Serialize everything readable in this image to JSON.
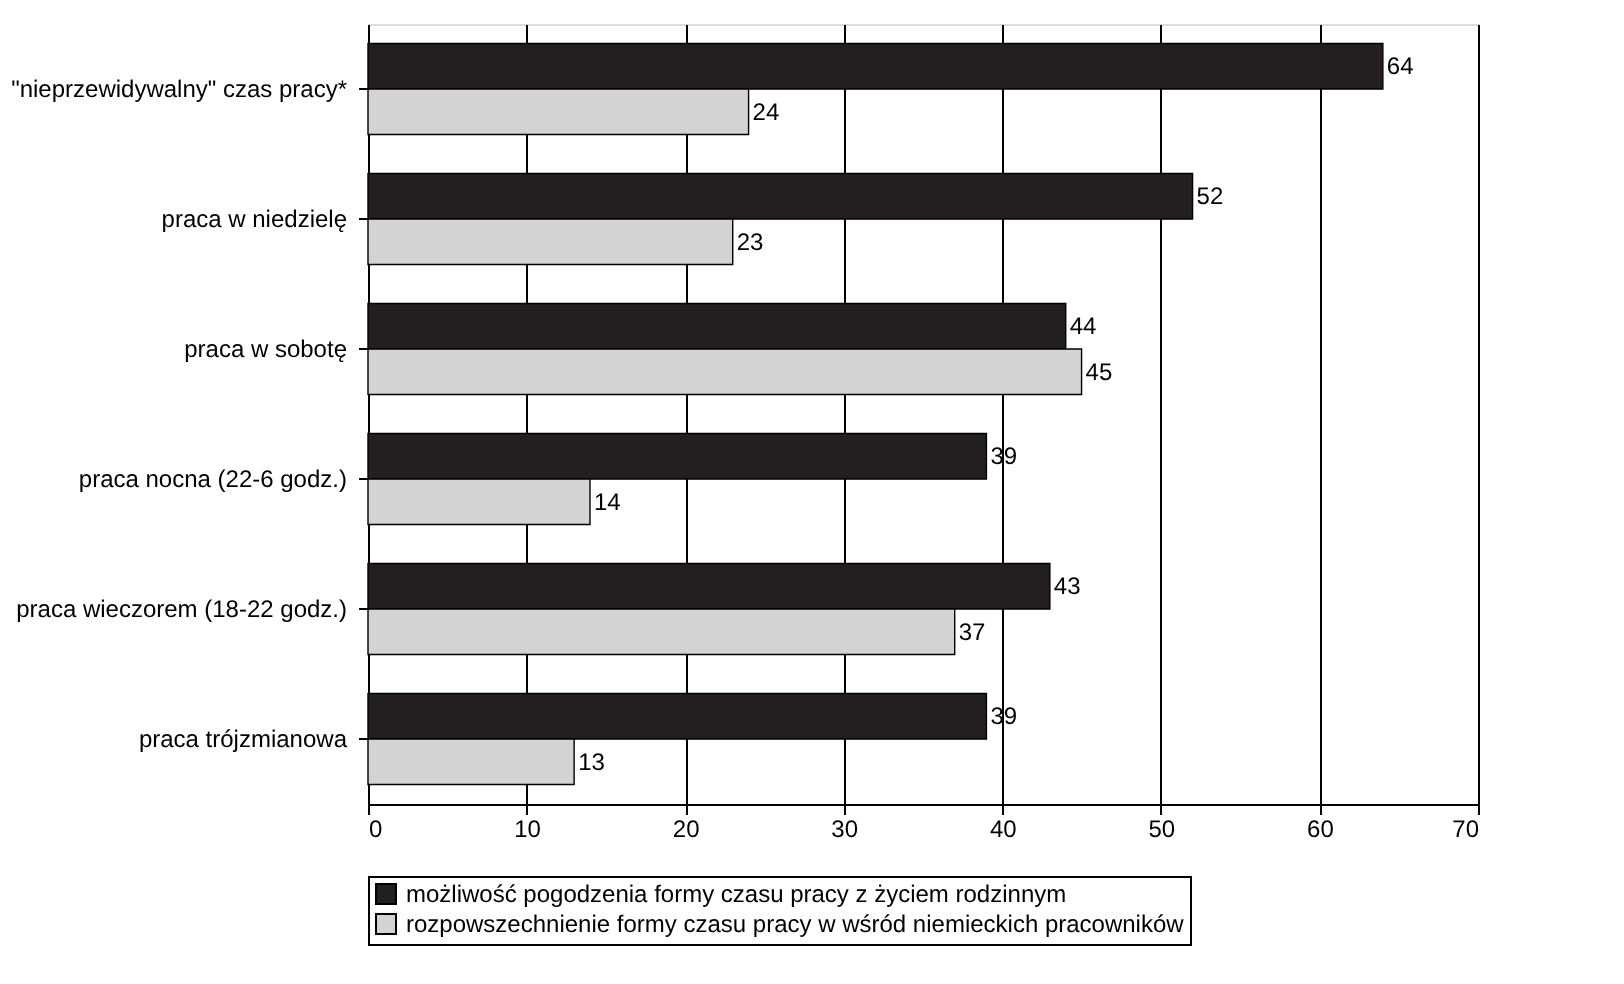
{
  "chart_data": {
    "type": "bar",
    "orientation": "horizontal",
    "categories": [
      "\"nieprzewidywalny\" czas pracy*",
      "praca w niedzielę",
      "praca w sobotę",
      "praca nocna (22-6 godz.)",
      "praca wieczorem (18-22 godz.)",
      "praca trójzmianowa"
    ],
    "series": [
      {
        "name": "możliwość pogodzenia formy czasu pracy z życiem rodzinnym",
        "color": "#231f20",
        "values": [
          64,
          52,
          44,
          39,
          43,
          39
        ]
      },
      {
        "name": "rozpowszechnienie formy czasu pracy w wśród niemieckich pracowników",
        "color": "#d3d3d3",
        "values": [
          24,
          23,
          45,
          14,
          37,
          13
        ]
      }
    ],
    "xlim": [
      0,
      70
    ],
    "xticks": [
      0,
      10,
      20,
      30,
      40,
      50,
      60,
      70
    ],
    "grid": "x",
    "legend": "bottom",
    "data_labels": true
  }
}
